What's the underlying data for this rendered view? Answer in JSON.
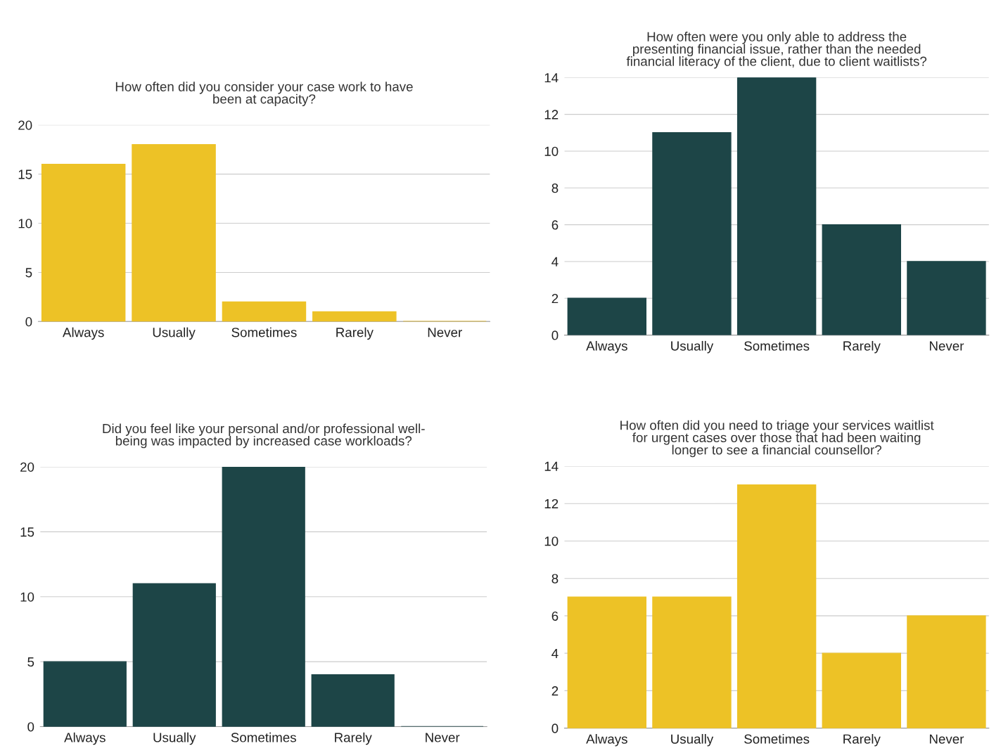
{
  "chart_data": [
    {
      "type": "bar",
      "title": "How often did you consider your case work to have\nbeen at capacity?",
      "categories": [
        "Always",
        "Usually",
        "Sometimes",
        "Rarely",
        "Never"
      ],
      "values": [
        16,
        18,
        2,
        1,
        0
      ],
      "color": "#edc226",
      "ylim": [
        0,
        20
      ],
      "yticks": [
        0,
        5,
        10,
        15,
        20
      ],
      "grid": "y"
    },
    {
      "type": "bar",
      "title": "How often were you only able to address the\npresenting financial issue, rather than the needed\nfinancial literacy of the client, due to client waitlists?",
      "categories": [
        "Always",
        "Usually",
        "Sometimes",
        "Rarely",
        "Never"
      ],
      "values": [
        2,
        11,
        14,
        6,
        4
      ],
      "color": "#1d4547",
      "ylim": [
        0,
        14
      ],
      "yticks": [
        0,
        2,
        4,
        6,
        8,
        10,
        12,
        14
      ],
      "grid": "y"
    },
    {
      "type": "bar",
      "title": "Did you feel like your personal and/or professional well-\nbeing was impacted by increased case workloads?",
      "categories": [
        "Always",
        "Usually",
        "Sometimes",
        "Rarely",
        "Never"
      ],
      "values": [
        5,
        11,
        20,
        4,
        0
      ],
      "color": "#1d4547",
      "ylim": [
        0,
        20
      ],
      "yticks": [
        0,
        5,
        10,
        15,
        20
      ],
      "grid": "y"
    },
    {
      "type": "bar",
      "title": "How often did you need to triage your services waitlist\nfor urgent cases over those that had been waiting\nlonger to see a financial counsellor?",
      "categories": [
        "Always",
        "Usually",
        "Sometimes",
        "Rarely",
        "Never"
      ],
      "values": [
        7,
        7,
        13,
        4,
        6
      ],
      "color": "#edc226",
      "ylim": [
        0,
        14
      ],
      "yticks": [
        0,
        2,
        4,
        6,
        8,
        10,
        12,
        14
      ],
      "grid": "y"
    }
  ]
}
